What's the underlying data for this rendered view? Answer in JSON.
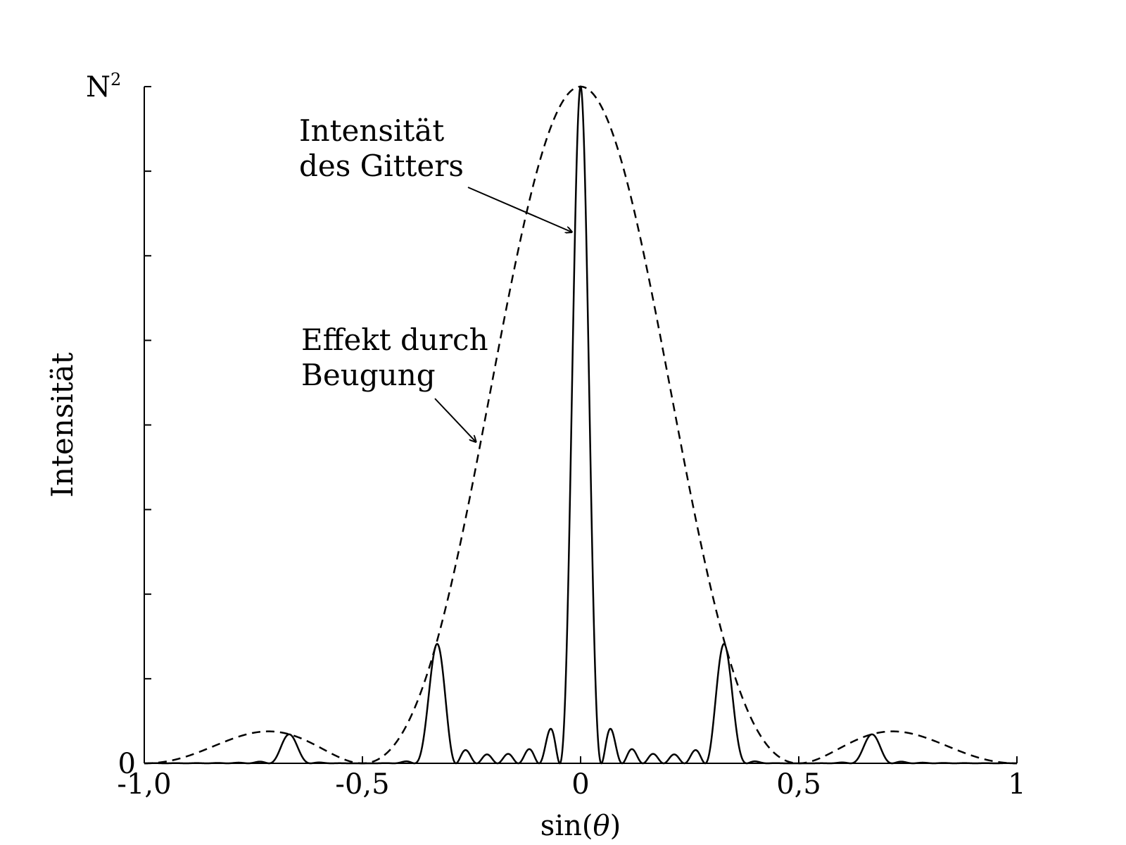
{
  "chart_data": {
    "type": "line",
    "title": "",
    "xlabel": "sin(θ)",
    "xlabel_parts": {
      "fn": "sin(",
      "var": "θ",
      "close": ")"
    },
    "ylabel": "Intensität",
    "xlim": [
      -1.0,
      1.0
    ],
    "ylim": [
      0,
      1
    ],
    "grid": false,
    "legend": "none",
    "x_ticks": [
      {
        "value": -1.0,
        "label": "-1,0"
      },
      {
        "value": -0.5,
        "label": "-0,5"
      },
      {
        "value": 0,
        "label": "0"
      },
      {
        "value": 0.5,
        "label": "0,5"
      },
      {
        "value": 1,
        "label": "1"
      }
    ],
    "y_tick_count": 9,
    "y_labels": {
      "bottom": "0",
      "top": {
        "base": "N",
        "sup": "2"
      }
    },
    "model": {
      "slit_ratio": 3,
      "zero_spacing": 0.0476,
      "envelope_first_zero": 0.5
    },
    "series": [
      {
        "style": "solid",
        "kind": "grating-intensity"
      },
      {
        "style": "dashed",
        "kind": "diffraction-envelope"
      }
    ],
    "annotations": [
      {
        "id": "grating",
        "lines": [
          "Intensität",
          "des Gitters"
        ],
        "arrow_to_x": -0.02,
        "arrow_to_y": 0.785
      },
      {
        "id": "diffraction",
        "lines": [
          "Effekt durch",
          "Beugung"
        ],
        "arrow_to_x": -0.24,
        "arrow_to_y": 0.475
      }
    ]
  }
}
